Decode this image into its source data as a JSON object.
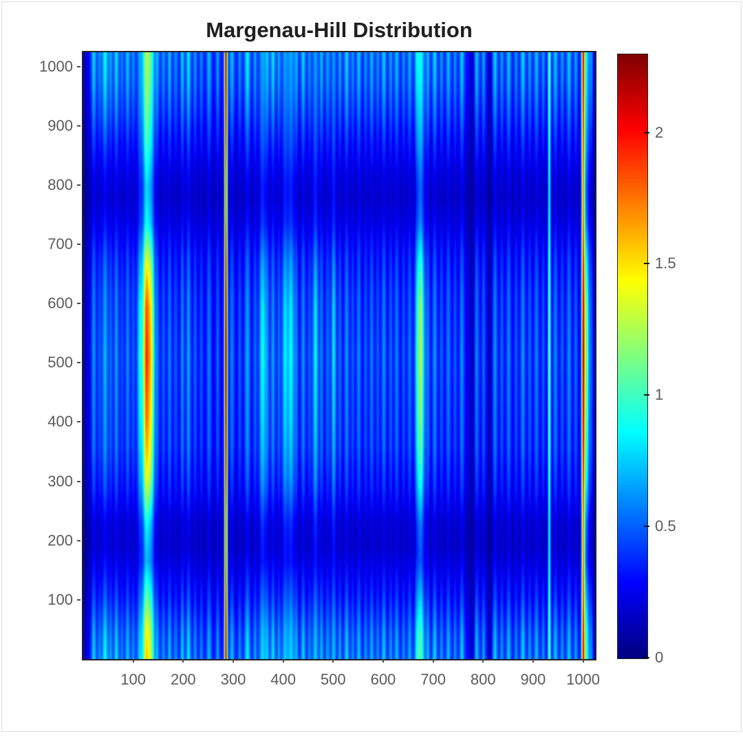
{
  "page": {
    "background": "#ffffff",
    "frame_color": "#dcdcdc"
  },
  "style": {
    "title_color": "#1f1f1f",
    "tick_label_color": "#5a5a5a",
    "tick_mark_color": "#4a4a4a",
    "axis_border_color": "#222222"
  },
  "chart_data": {
    "type": "heatmap",
    "title": "Margenau-Hill Distribution",
    "xlabel": "",
    "ylabel": "",
    "x_range": [
      1,
      1024
    ],
    "y_range": [
      1,
      1024
    ],
    "x_ticks": [
      100,
      200,
      300,
      400,
      500,
      600,
      700,
      800,
      900,
      1000
    ],
    "y_ticks": [
      100,
      200,
      300,
      400,
      500,
      600,
      700,
      800,
      900,
      1000
    ],
    "grid": false,
    "colormap": "jet",
    "value_range": [
      0,
      2.3
    ],
    "colorbar_position": "right",
    "colorbar_ticks": [
      0,
      0.5,
      1,
      1.5,
      2
    ],
    "colorbar_gradient": [
      {
        "pos": 0.0,
        "color": "#000080"
      },
      {
        "pos": 0.125,
        "color": "#0000ff"
      },
      {
        "pos": 0.375,
        "color": "#00ffff"
      },
      {
        "pos": 0.625,
        "color": "#ffff00"
      },
      {
        "pos": 0.875,
        "color": "#ff0000"
      },
      {
        "pos": 1.0,
        "color": "#7f0000"
      }
    ],
    "base_level": 0.3,
    "base_offset": 0.03,
    "row_envelopes": {
      "A": [
        [
          0,
          1.0
        ],
        [
          0.04,
          0.9
        ],
        [
          0.1,
          0.6
        ],
        [
          0.15,
          0.4
        ],
        [
          0.185,
          0.28
        ],
        [
          0.225,
          0.32
        ],
        [
          0.28,
          0.55
        ],
        [
          0.35,
          0.72
        ],
        [
          0.5,
          0.8
        ],
        [
          0.6,
          0.72
        ],
        [
          0.66,
          0.6
        ],
        [
          0.72,
          0.38
        ],
        [
          0.76,
          0.28
        ],
        [
          0.8,
          0.36
        ],
        [
          0.85,
          0.55
        ],
        [
          0.9,
          0.75
        ],
        [
          0.95,
          0.92
        ],
        [
          1,
          1.0
        ]
      ],
      "B": [
        [
          0,
          0.75
        ],
        [
          0.05,
          0.7
        ],
        [
          0.1,
          0.55
        ],
        [
          0.16,
          0.35
        ],
        [
          0.22,
          0.45
        ],
        [
          0.3,
          0.75
        ],
        [
          0.4,
          0.92
        ],
        [
          0.5,
          1.0
        ],
        [
          0.58,
          0.95
        ],
        [
          0.65,
          0.75
        ],
        [
          0.72,
          0.45
        ],
        [
          0.78,
          0.4
        ],
        [
          0.85,
          0.5
        ],
        [
          0.93,
          0.55
        ],
        [
          1,
          0.58
        ]
      ],
      "C": [
        [
          0,
          0.9
        ],
        [
          0.25,
          0.88
        ],
        [
          0.5,
          1.0
        ],
        [
          0.75,
          0.88
        ],
        [
          1,
          0.92
        ]
      ]
    },
    "stripes": [
      [
        0.004,
        3,
        -0.18,
        "A"
      ],
      [
        0.02,
        2.5,
        0.45,
        "A"
      ],
      [
        0.031,
        2,
        0.28,
        "A"
      ],
      [
        0.042,
        3,
        0.55,
        "A"
      ],
      [
        0.053,
        2,
        0.33,
        "A"
      ],
      [
        0.064,
        2.5,
        0.48,
        "A"
      ],
      [
        0.075,
        2,
        0.26,
        "A"
      ],
      [
        0.086,
        2.5,
        0.42,
        "A"
      ],
      [
        0.097,
        2,
        0.3,
        "A"
      ],
      [
        0.11,
        3,
        0.58,
        "B"
      ],
      [
        0.1205,
        3,
        0.75,
        "B"
      ],
      [
        0.1258,
        4,
        1.15,
        "B"
      ],
      [
        0.1338,
        3,
        0.72,
        "B"
      ],
      [
        0.144,
        2,
        0.38,
        "A"
      ],
      [
        0.156,
        2.5,
        0.3,
        "A"
      ],
      [
        0.168,
        2,
        0.42,
        "A"
      ],
      [
        0.18,
        2.5,
        0.28,
        "A"
      ],
      [
        0.193,
        2,
        0.45,
        "A"
      ],
      [
        0.205,
        2.5,
        0.5,
        "A"
      ],
      [
        0.218,
        2,
        0.32,
        "A"
      ],
      [
        0.23,
        2,
        0.28,
        "A"
      ],
      [
        0.245,
        2.5,
        0.4,
        "A"
      ],
      [
        0.262,
        2,
        0.33,
        "A"
      ],
      [
        0.2781,
        1.6,
        1.95,
        "C"
      ],
      [
        0.29,
        2.5,
        0.4,
        "A"
      ],
      [
        0.305,
        2,
        0.3,
        "A"
      ],
      [
        0.32,
        3,
        0.52,
        "A"
      ],
      [
        0.335,
        2,
        0.34,
        "A"
      ],
      [
        0.3497,
        3.5,
        0.62,
        "B"
      ],
      [
        0.3589,
        2,
        0.38,
        "A"
      ],
      [
        0.37,
        2.5,
        0.48,
        "A"
      ],
      [
        0.3815,
        2,
        0.35,
        "A"
      ],
      [
        0.3934,
        3,
        0.55,
        "B"
      ],
      [
        0.4053,
        3.5,
        0.6,
        "B"
      ],
      [
        0.4159,
        2,
        0.36,
        "A"
      ],
      [
        0.4291,
        2.5,
        0.45,
        "A"
      ],
      [
        0.4411,
        2,
        0.3,
        "A"
      ],
      [
        0.453,
        3,
        0.58,
        "B"
      ],
      [
        0.4649,
        2,
        0.4,
        "A"
      ],
      [
        0.4768,
        2.5,
        0.34,
        "A"
      ],
      [
        0.4887,
        2.5,
        0.55,
        "B"
      ],
      [
        0.5007,
        2,
        0.36,
        "A"
      ],
      [
        0.5139,
        2.5,
        0.46,
        "A"
      ],
      [
        0.5258,
        2,
        0.3,
        "A"
      ],
      [
        0.5377,
        2.5,
        0.42,
        "A"
      ],
      [
        0.551,
        2,
        0.32,
        "A"
      ],
      [
        0.5629,
        2.5,
        0.38,
        "A"
      ],
      [
        0.5748,
        2,
        0.3,
        "A"
      ],
      [
        0.5867,
        2.5,
        0.44,
        "A"
      ],
      [
        0.6,
        2,
        0.34,
        "A"
      ],
      [
        0.6119,
        2.5,
        0.4,
        "A"
      ],
      [
        0.6252,
        2,
        0.3,
        "A"
      ],
      [
        0.6371,
        2.5,
        0.36,
        "A"
      ],
      [
        0.6503,
        2,
        0.32,
        "A"
      ],
      [
        0.6583,
        4,
        1.0,
        "B"
      ],
      [
        0.6728,
        2,
        0.38,
        "A"
      ],
      [
        0.6861,
        2.5,
        0.46,
        "A"
      ],
      [
        0.6993,
        2,
        0.32,
        "A"
      ],
      [
        0.7126,
        2.5,
        0.4,
        "A"
      ],
      [
        0.7258,
        2,
        0.3,
        "A"
      ],
      [
        0.7391,
        2.5,
        0.44,
        "A"
      ],
      [
        0.7589,
        2,
        -0.22,
        "A"
      ],
      [
        0.7682,
        2.5,
        0.4,
        "A"
      ],
      [
        0.7815,
        2,
        0.34,
        "A"
      ],
      [
        0.7934,
        1.6,
        -0.25,
        "A"
      ],
      [
        0.804,
        2.5,
        0.44,
        "A"
      ],
      [
        0.8172,
        2,
        0.32,
        "A"
      ],
      [
        0.8305,
        2.5,
        0.42,
        "A"
      ],
      [
        0.845,
        2,
        0.3,
        "A"
      ],
      [
        0.8583,
        2.5,
        0.46,
        "A"
      ],
      [
        0.8715,
        2,
        0.34,
        "A"
      ],
      [
        0.8848,
        2.5,
        0.4,
        "A"
      ],
      [
        0.898,
        2,
        0.3,
        "A"
      ],
      [
        0.9099,
        1.5,
        0.85,
        "C"
      ],
      [
        0.9219,
        2.5,
        0.42,
        "A"
      ],
      [
        0.9351,
        2,
        0.32,
        "A"
      ],
      [
        0.9483,
        2.5,
        0.44,
        "A"
      ],
      [
        0.9616,
        2,
        0.34,
        "A"
      ],
      [
        0.9762,
        1.7,
        1.8,
        "C"
      ],
      [
        0.9828,
        2.5,
        0.85,
        "B"
      ],
      [
        0.9921,
        2,
        0.3,
        "A"
      ],
      [
        0.998,
        2,
        -0.15,
        "A"
      ]
    ]
  }
}
